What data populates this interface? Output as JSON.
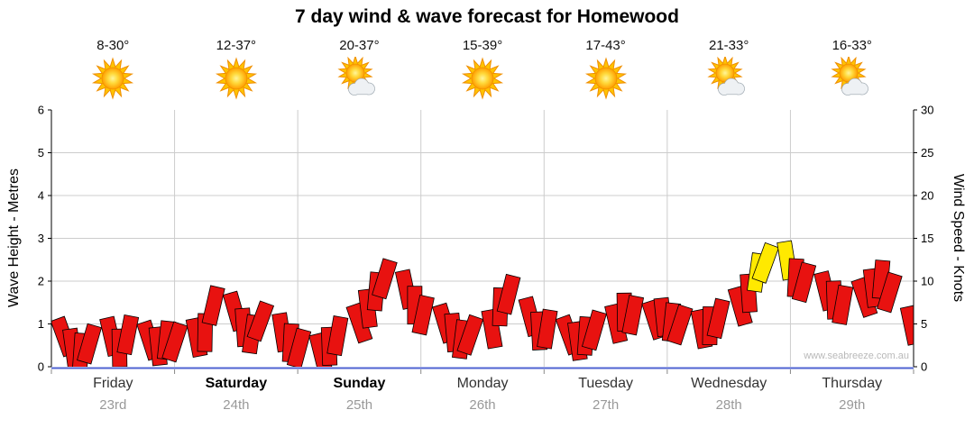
{
  "title": "7 day wind & wave forecast for Homewood",
  "watermark": "www.seabreeze.com.au",
  "days": [
    {
      "name": "Friday",
      "date": "23rd",
      "temp": "8-30°",
      "icon": "sunny",
      "bold": false
    },
    {
      "name": "Saturday",
      "date": "24th",
      "temp": "12-37°",
      "icon": "sunny",
      "bold": true
    },
    {
      "name": "Sunday",
      "date": "25th",
      "temp": "20-37°",
      "icon": "partly-cloudy",
      "bold": true
    },
    {
      "name": "Monday",
      "date": "26th",
      "temp": "15-39°",
      "icon": "sunny",
      "bold": false
    },
    {
      "name": "Tuesday",
      "date": "27th",
      "temp": "17-43°",
      "icon": "sunny",
      "bold": false
    },
    {
      "name": "Wednesday",
      "date": "28th",
      "temp": "21-33°",
      "icon": "partly-cloudy",
      "bold": false
    },
    {
      "name": "Thursday",
      "date": "29th",
      "temp": "16-33°",
      "icon": "partly-cloudy",
      "bold": false
    }
  ],
  "chart_data": {
    "type": "area",
    "title": "7 day wind & wave forecast for Homewood",
    "x_categories": [
      "Friday 23rd",
      "Saturday 24th",
      "Sunday 25th",
      "Monday 26th",
      "Tuesday 27th",
      "Wednesday 28th",
      "Thursday 29th"
    ],
    "samples_per_day": 10,
    "series": [
      {
        "name": "Wind Speed",
        "unit": "knots",
        "values": [
          5.6,
          4.4,
          3.9,
          4.8,
          5.7,
          4.4,
          5.9,
          5.2,
          4.6,
          5.3,
          5.0,
          5.6,
          6.2,
          9.3,
          8.6,
          6.8,
          6.0,
          7.4,
          6.2,
          5.0,
          4.3,
          3.8,
          4.6,
          5.8,
          7.2,
          9.0,
          11.0,
          12.4,
          11.2,
          9.4,
          8.2,
          7.2,
          6.2,
          5.4,
          5.8,
          6.6,
          9.2,
          10.6,
          8.0,
          6.4,
          6.6,
          5.8,
          5.2,
          5.8,
          6.4,
          7.2,
          8.6,
          8.2,
          7.6,
          8.0,
          7.4,
          7.0,
          6.6,
          7.0,
          7.8,
          9.2,
          10.8,
          13.2,
          14.2,
          14.6,
          12.6,
          12.0,
          11.0,
          10.0,
          9.4,
          10.2,
          11.4,
          12.4,
          10.8,
          7.0
        ]
      }
    ],
    "left_axis": {
      "label": "Wave Height - Metres",
      "ticks": [
        0,
        1,
        2,
        3,
        4,
        5,
        6
      ],
      "range": [
        0,
        6
      ]
    },
    "right_axis": {
      "label": "Wind Speed - Knots",
      "ticks": [
        0,
        5,
        10,
        15,
        20,
        25,
        30
      ],
      "range": [
        0,
        30
      ]
    },
    "grid": true,
    "legend": false,
    "colors": {
      "wind_normal": "#e81210",
      "wind_strong": "#ffe900",
      "strong_threshold_knots": 13,
      "axis_x": "#4f63d2",
      "grid": "#cccccc"
    }
  }
}
